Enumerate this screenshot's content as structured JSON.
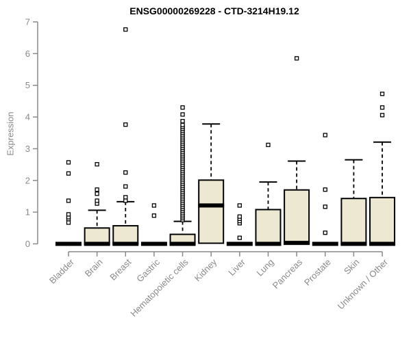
{
  "chart_data": {
    "type": "boxplot",
    "title": "ENSG00000269228 - CTD-3214H19.12",
    "ylabel": "Expression",
    "xlabel": "",
    "ylim": [
      0,
      7
    ],
    "yticks": [
      0,
      1,
      2,
      3,
      4,
      5,
      6,
      7
    ],
    "grid": "off",
    "colors": {
      "box_fill": "#EDE8D1",
      "box_stroke": "#000000",
      "axis": "#898989",
      "title": "#000000",
      "outlier_fill": "#ffffff"
    },
    "categories": [
      "Bladder",
      "Brain",
      "Breast",
      "Gastric",
      "Hematopoietic cells",
      "Kidney",
      "Liver",
      "Lung",
      "Pancreas",
      "Prostate",
      "Skin",
      "Unknown / Other"
    ],
    "series": [
      {
        "name": "Bladder",
        "q1": 0,
        "median": 0,
        "q3": 0,
        "whisker_low": 0,
        "whisker_high": 0,
        "outliers": [
          0.67,
          0.78,
          0.84,
          0.93,
          1.36,
          2.22,
          2.57
        ]
      },
      {
        "name": "Brain",
        "q1": 0,
        "median": 0,
        "q3": 0.5,
        "whisker_low": 0,
        "whisker_high": 1.06,
        "outliers": [
          1.27,
          1.36,
          1.58,
          1.71,
          2.51
        ]
      },
      {
        "name": "Breast",
        "q1": 0,
        "median": 0,
        "q3": 0.57,
        "whisker_low": 0,
        "whisker_high": 1.33,
        "outliers": [
          1.36,
          1.47,
          1.81,
          2.25,
          3.76,
          6.76
        ]
      },
      {
        "name": "Gastric",
        "q1": 0,
        "median": 0,
        "q3": 0,
        "whisker_low": 0,
        "whisker_high": 0,
        "outliers": [
          0.89,
          1.21
        ]
      },
      {
        "name": "Hematopoietic cells",
        "q1": 0,
        "median": 0,
        "q3": 0.3,
        "whisker_low": 0,
        "whisker_high": 0.71,
        "outliers": [
          0.75,
          0.81,
          0.87,
          0.93,
          0.99,
          1.05,
          1.11,
          1.17,
          1.23,
          1.29,
          1.35,
          1.41,
          1.47,
          1.53,
          1.59,
          1.65,
          1.71,
          1.77,
          1.83,
          1.89,
          1.95,
          2.01,
          2.07,
          2.13,
          2.19,
          2.25,
          2.31,
          2.37,
          2.43,
          2.49,
          2.55,
          2.61,
          2.67,
          2.73,
          2.79,
          2.85,
          2.91,
          2.97,
          3.03,
          3.09,
          3.15,
          3.21,
          3.27,
          3.33,
          3.39,
          3.45,
          3.51,
          3.57,
          3.63,
          3.69,
          3.75,
          3.87,
          4.08,
          4.3
        ]
      },
      {
        "name": "Kidney",
        "q1": 0.02,
        "median": 1.21,
        "q3": 2.01,
        "whisker_low": 0.02,
        "whisker_high": 3.78,
        "outliers": []
      },
      {
        "name": "Liver",
        "q1": 0,
        "median": 0,
        "q3": 0,
        "whisker_low": 0,
        "whisker_high": 0,
        "outliers": [
          0.19,
          0.65,
          0.72,
          0.79,
          0.86,
          1.21
        ]
      },
      {
        "name": "Lung",
        "q1": 0,
        "median": 0,
        "q3": 1.08,
        "whisker_low": 0,
        "whisker_high": 1.95,
        "outliers": [
          3.12
        ]
      },
      {
        "name": "Pancreas",
        "q1": 0,
        "median": 0.03,
        "q3": 1.7,
        "whisker_low": 0,
        "whisker_high": 2.61,
        "outliers": [
          5.85
        ]
      },
      {
        "name": "Prostate",
        "q1": 0,
        "median": 0,
        "q3": 0,
        "whisker_low": 0,
        "whisker_high": 0,
        "outliers": [
          0.35,
          1.17,
          1.71,
          3.43
        ]
      },
      {
        "name": "Skin",
        "q1": 0,
        "median": 0,
        "q3": 1.43,
        "whisker_low": 0,
        "whisker_high": 2.65,
        "outliers": []
      },
      {
        "name": "Unknown / Other",
        "q1": 0,
        "median": 0,
        "q3": 1.46,
        "whisker_low": 0,
        "whisker_high": 3.21,
        "outliers": [
          4.06,
          4.3,
          4.73
        ]
      }
    ]
  }
}
